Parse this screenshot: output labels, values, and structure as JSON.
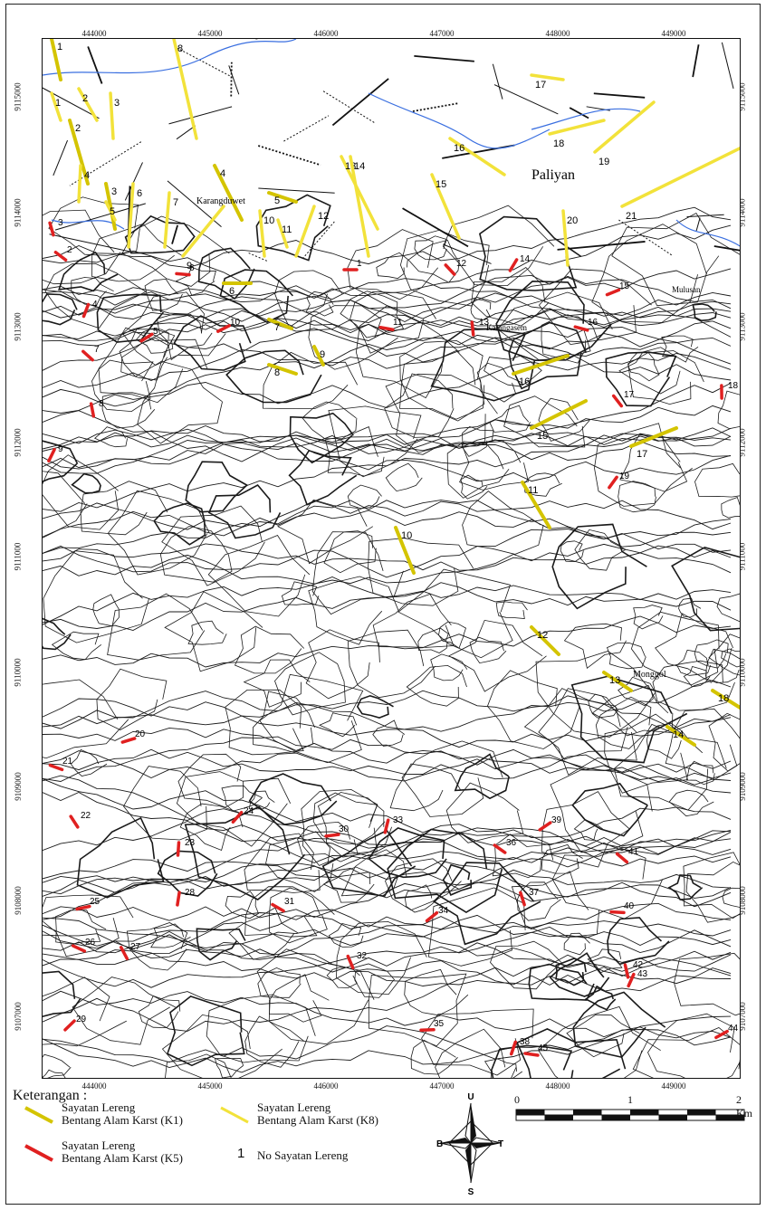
{
  "map": {
    "x_ticks": [
      "444000",
      "445000",
      "446000",
      "447000",
      "448000",
      "449000"
    ],
    "y_ticks": [
      "9115000",
      "9114000",
      "9113000",
      "9112000",
      "9111000",
      "9110000",
      "9109000",
      "9108000",
      "9107000"
    ],
    "places": [
      "Paliyan",
      "Karangduwet",
      "Karangasem",
      "Mulusan",
      "Monggol"
    ],
    "k1_labels": [
      "1",
      "2",
      "3",
      "4",
      "5",
      "6",
      "7",
      "8",
      "9",
      "10",
      "11",
      "12",
      "13",
      "14",
      "15",
      "16",
      "17",
      "18"
    ],
    "k8_labels": [
      "1",
      "2",
      "3",
      "4",
      "5",
      "6",
      "7",
      "8",
      "9",
      "10",
      "11",
      "12",
      "13",
      "14",
      "15",
      "16",
      "17",
      "18",
      "19",
      "20",
      "21"
    ],
    "k5_labels": [
      "1",
      "2",
      "3",
      "4",
      "5",
      "6",
      "7",
      "8",
      "9",
      "10",
      "11",
      "12",
      "13",
      "14",
      "15",
      "16",
      "17",
      "18",
      "19",
      "20",
      "21",
      "22",
      "23",
      "24",
      "25",
      "26",
      "27",
      "28",
      "29",
      "30",
      "31",
      "32",
      "33",
      "34",
      "35",
      "36",
      "37",
      "38",
      "39",
      "40",
      "41",
      "42",
      "43",
      "44",
      "45"
    ],
    "colors": {
      "k1": "#d4c400",
      "k8": "#f2e23a",
      "k5": "#e02020",
      "river": "#3a6fe0",
      "contour": "#1a1a1a"
    }
  },
  "legend": {
    "title": "Keterangan :",
    "k1_line1": "Sayatan Lereng",
    "k1_line2": "Bentang Alam Karst (K1)",
    "k8_line1": "Sayatan Lereng",
    "k8_line2": "Bentang Alam Karst (K8)",
    "k5_line1": "Sayatan Lereng",
    "k5_line2": "Bentang Alam Karst (K5)",
    "num_symbol": "1",
    "num_text": "No Sayatan Lereng"
  },
  "compass": {
    "n": "U",
    "s": "S",
    "e": "T",
    "w": "B"
  },
  "scale": {
    "zero": "0",
    "one": "1",
    "two": "2 Km"
  }
}
